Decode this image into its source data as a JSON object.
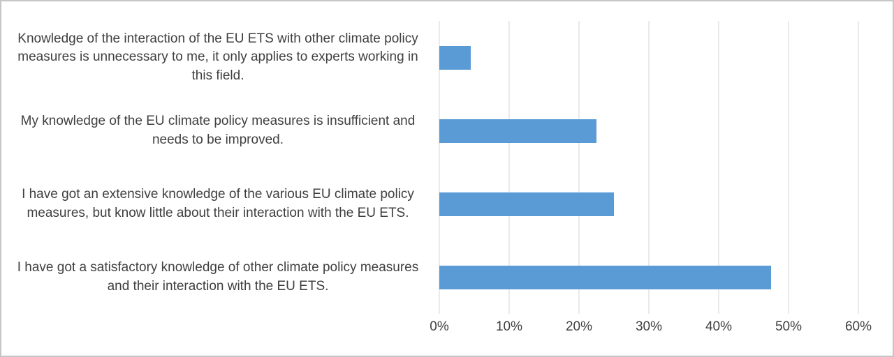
{
  "chart_data": {
    "type": "bar",
    "orientation": "horizontal",
    "title": "",
    "xlabel": "",
    "ylabel": "",
    "xlim": [
      0,
      60
    ],
    "x_ticks": [
      "0%",
      "10%",
      "20%",
      "30%",
      "40%",
      "50%",
      "60%"
    ],
    "grid": true,
    "legend": false,
    "bar_color": "#5b9bd5",
    "gridline_color": "#d6d6d6",
    "text_color": "#3f3f3f",
    "categories": [
      "Knowledge of the interaction of the EU ETS with other climate policy measures is unnecessary to me, it only applies to experts working in this field.",
      "My knowledge of the EU climate policy measures is insufficient and needs to be improved.",
      "I have got an extensive knowledge of the various EU climate policy measures, but know little about their interaction with the EU ETS.",
      "I have got a satisfactory knowledge of other climate policy measures and their interaction with the EU ETS."
    ],
    "values": [
      4.5,
      22.5,
      25,
      47.5
    ]
  }
}
